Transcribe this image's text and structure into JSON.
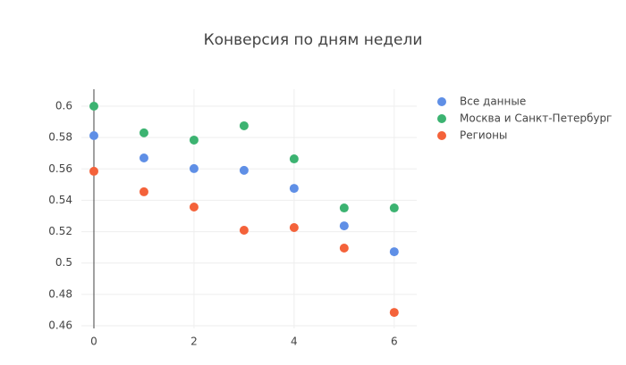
{
  "chart_data": {
    "type": "scatter",
    "title": "Конверсия по дням недели",
    "x": [
      0,
      1,
      2,
      3,
      4,
      5,
      6
    ],
    "series": [
      {
        "name": "Все данные",
        "color": "#5f8fe6",
        "values": [
          0.5812,
          0.567,
          0.5602,
          0.5591,
          0.5476,
          0.5237,
          0.5072
        ]
      },
      {
        "name": "Москва и Санкт-Петербург",
        "color": "#3cb371",
        "values": [
          0.6,
          0.583,
          0.5784,
          0.5875,
          0.5664,
          0.5351,
          0.5351
        ]
      },
      {
        "name": "Регионы",
        "color": "#f4623a",
        "values": [
          0.5585,
          0.5454,
          0.5357,
          0.5209,
          0.5226,
          0.5095,
          0.4685
        ]
      }
    ],
    "xlim": [
      -0.25,
      6.45
    ],
    "xticks": [
      0,
      2,
      4,
      6
    ],
    "ylim": [
      0.4583,
      0.6108
    ],
    "yticks": [
      0.46,
      0.48,
      0.5,
      0.52,
      0.54,
      0.56,
      0.58,
      0.6
    ],
    "grid": true,
    "legend": "right"
  }
}
